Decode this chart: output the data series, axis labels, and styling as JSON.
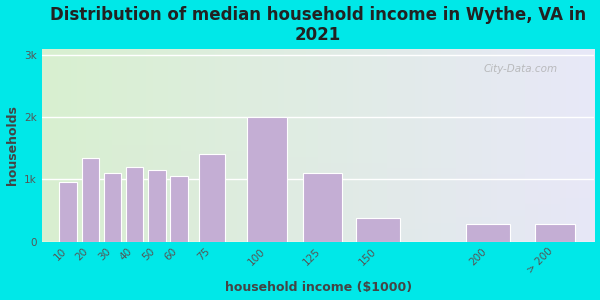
{
  "title": "Distribution of median household income in Wythe, VA in\n2021",
  "xlabel": "household income ($1000)",
  "ylabel": "households",
  "bar_labels": [
    "10",
    "20",
    "30",
    "40",
    "50",
    "60",
    "75",
    "100",
    "125",
    "150",
    "200",
    "> 200"
  ],
  "bar_positions": [
    10,
    20,
    30,
    40,
    50,
    60,
    75,
    100,
    125,
    150,
    200,
    230
  ],
  "bar_widths": [
    8,
    8,
    8,
    8,
    8,
    8,
    12,
    18,
    18,
    20,
    20,
    18
  ],
  "bar_values": [
    950,
    1350,
    1100,
    1200,
    1150,
    1050,
    1400,
    2000,
    1100,
    380,
    280,
    280
  ],
  "bar_color": "#c4aed4",
  "bar_edge_color": "#ffffff",
  "yticks": [
    0,
    1000,
    2000,
    3000
  ],
  "ytick_labels": [
    "0",
    "1k",
    "2k",
    "3k"
  ],
  "ylim": [
    0,
    3100
  ],
  "xlim": [
    -2,
    248
  ],
  "xtick_positions": [
    10,
    20,
    30,
    40,
    50,
    60,
    75,
    100,
    125,
    150,
    200,
    230
  ],
  "background_outer": "#00e8e8",
  "background_inner_left": "#d8f0d0",
  "background_inner_right": "#e8e8f8",
  "title_fontsize": 12,
  "axis_label_fontsize": 9,
  "tick_fontsize": 7.5,
  "watermark": "City-Data.com"
}
